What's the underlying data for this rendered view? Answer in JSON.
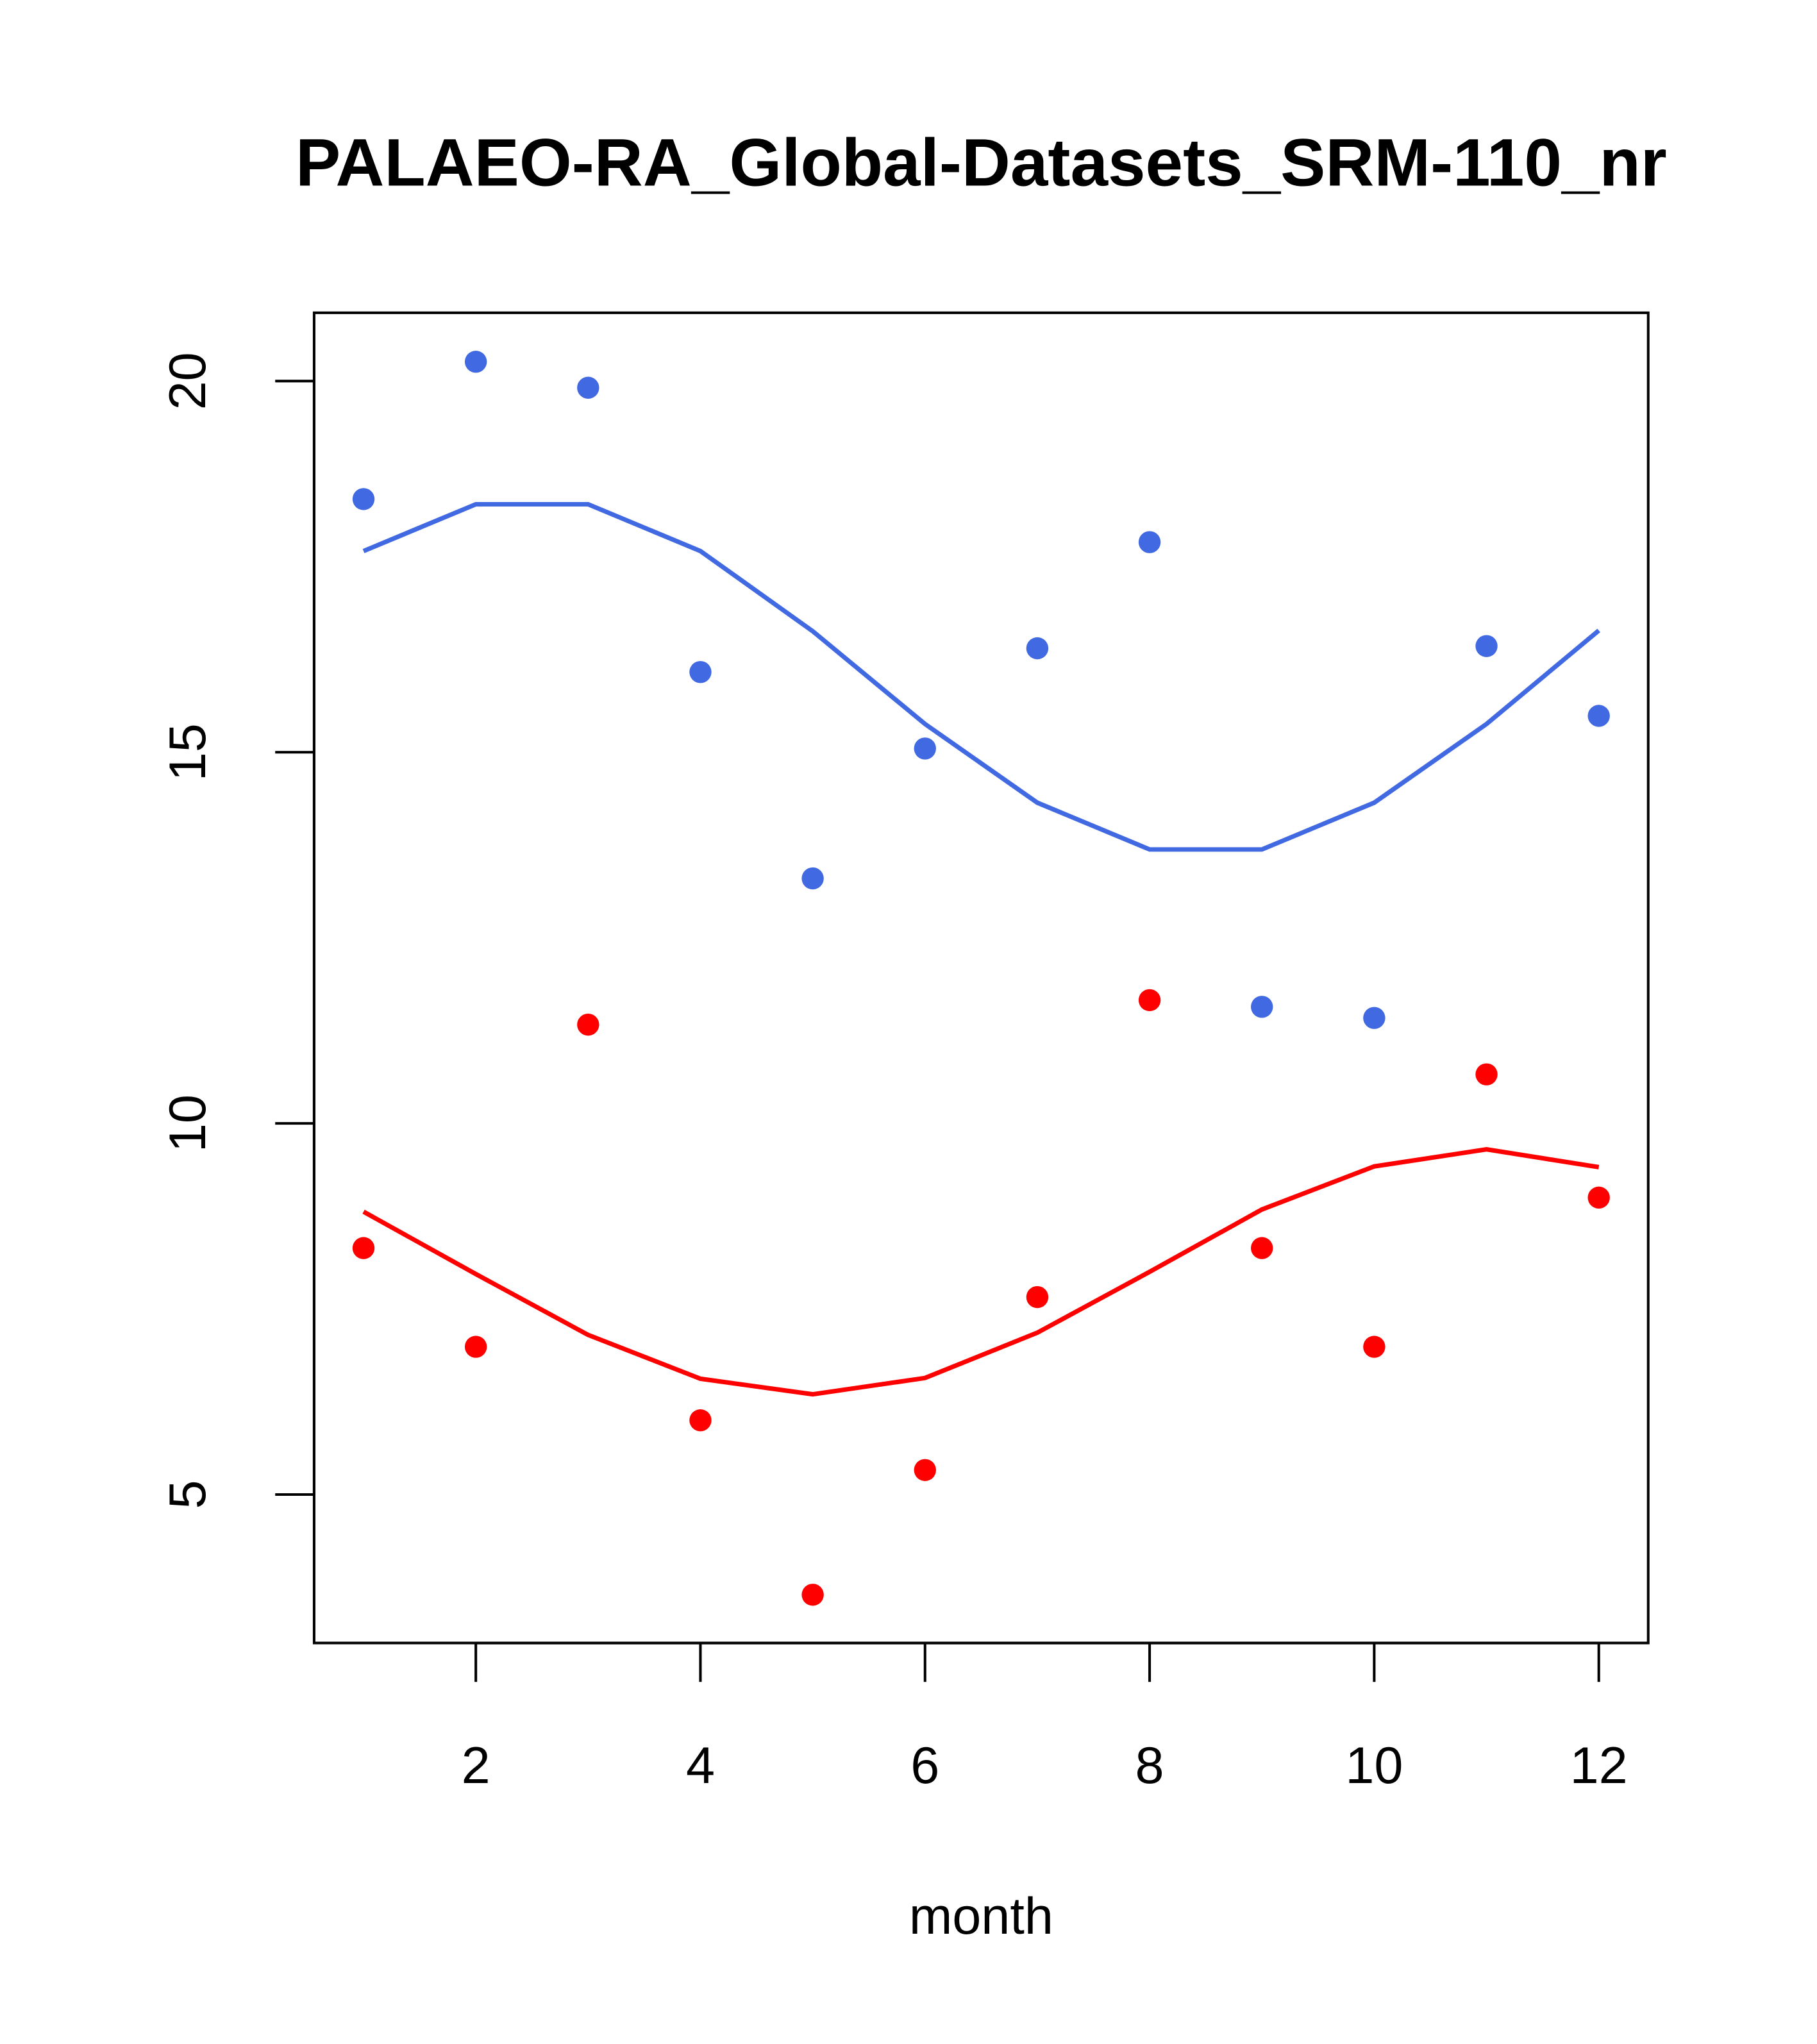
{
  "chart_data": {
    "type": "scatter",
    "title": "PALAEO-RA_Global-Datasets_SRM-110_nr",
    "xlabel": "month",
    "ylabel": "",
    "xlim": [
      0.56,
      12.44
    ],
    "ylim": [
      3.0,
      20.92
    ],
    "xticks": [
      2,
      4,
      6,
      8,
      10,
      12
    ],
    "yticks": [
      5,
      10,
      15,
      20
    ],
    "grid": false,
    "x": [
      1,
      2,
      3,
      4,
      5,
      6,
      7,
      8,
      9,
      10,
      11,
      12
    ],
    "series": [
      {
        "name": "blue points",
        "kind": "points",
        "color": "#4169E1",
        "values": [
          18.41,
          20.26,
          19.91,
          16.08,
          13.3,
          15.05,
          16.4,
          17.83,
          11.57,
          11.42,
          16.43,
          15.49
        ]
      },
      {
        "name": "blue line",
        "kind": "line",
        "color": "#4169E1",
        "values": [
          17.71,
          18.34,
          18.34,
          17.71,
          16.63,
          15.38,
          14.32,
          13.69,
          13.69,
          14.32,
          15.38,
          16.64
        ]
      },
      {
        "name": "red points",
        "kind": "points",
        "color": "#FF0000",
        "values": [
          8.32,
          6.99,
          11.33,
          6.0,
          3.65,
          5.33,
          7.66,
          11.66,
          8.32,
          6.99,
          10.66,
          9.0
        ]
      },
      {
        "name": "red line",
        "kind": "line",
        "color": "#FF0000",
        "values": [
          8.81,
          7.97,
          7.15,
          6.56,
          6.35,
          6.57,
          7.18,
          8.0,
          8.84,
          9.42,
          9.65,
          9.41
        ]
      }
    ]
  }
}
